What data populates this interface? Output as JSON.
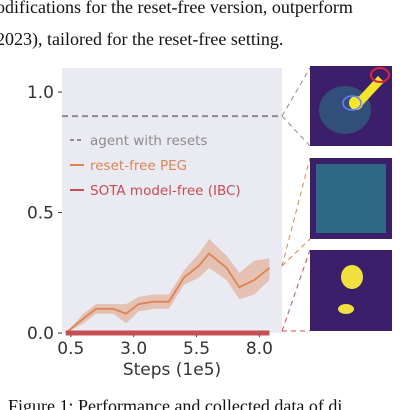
{
  "text_lines": [
    "odifications for the reset-free version, outperform",
    "2023), tailored for the reset-free setting."
  ],
  "caption": "Figure 1: Performance and collected data of di",
  "chart_data": {
    "type": "line",
    "xlabel": "Steps (1e5)",
    "xlim": [
      0.15,
      8.9
    ],
    "ylim": [
      0,
      1.1
    ],
    "xticks": [
      0.5,
      {
        "value": 3,
        "label": "3.0"
      },
      5.5,
      {
        "value": 8,
        "label": "8.0"
      }
    ],
    "yticks": [
      {
        "value": 0,
        "label": "0.0"
      },
      0.5,
      {
        "value": 1,
        "label": "1.0"
      }
    ],
    "grid": false,
    "background": "#eaeaf2",
    "series": [
      {
        "name": "agent with resets",
        "color": "#8c8c8c",
        "dashed": true,
        "x": [
          0.15,
          8.9
        ],
        "values": [
          0.9,
          0.9
        ]
      },
      {
        "name": "reset-free PEG",
        "color": "#dd8452",
        "x": [
          0.3,
          1.0,
          1.5,
          2.2,
          2.7,
          3.2,
          3.8,
          4.4,
          5.0,
          5.6,
          6.0,
          6.7,
          7.2,
          7.8,
          8.4
        ],
        "values": [
          0.0,
          0.06,
          0.1,
          0.1,
          0.08,
          0.12,
          0.13,
          0.13,
          0.23,
          0.28,
          0.33,
          0.27,
          0.19,
          0.22,
          0.27
        ],
        "lower": [
          0.0,
          0.04,
          0.08,
          0.08,
          0.04,
          0.09,
          0.1,
          0.1,
          0.2,
          0.23,
          0.27,
          0.22,
          0.14,
          0.16,
          0.22
        ],
        "upper": [
          0.0,
          0.08,
          0.12,
          0.12,
          0.12,
          0.15,
          0.16,
          0.16,
          0.26,
          0.33,
          0.39,
          0.32,
          0.25,
          0.3,
          0.31
        ]
      },
      {
        "name": "SOTA model-free (IBC)",
        "color": "#c44e52",
        "x": [
          0.3,
          8.4
        ],
        "values": [
          0,
          0
        ]
      }
    ]
  }
}
